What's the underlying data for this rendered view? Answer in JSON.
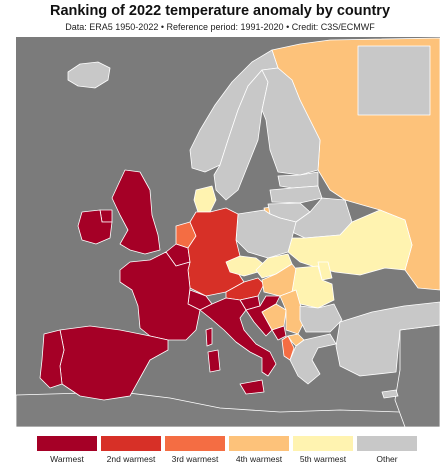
{
  "title": "Ranking of 2022 temperature anomaly by country",
  "subtitle": "Data: ERA5 1950-2022 • Reference period: 1991-2020 • Credit: C3S/ECMWF",
  "colors": {
    "sea": "#7b7b7b",
    "non_european_land": "#7e7e7e",
    "border": "#ffffff",
    "warmest": "#a50026",
    "second_warmest": "#d73027",
    "third_warmest": "#f46d43",
    "fourth_warmest": "#fdc27a",
    "fifth_warmest": "#fff3b0",
    "other": "#c8c8c8"
  },
  "legend": [
    {
      "label": "Warmest",
      "color": "#a50026"
    },
    {
      "label": "2nd warmest",
      "color": "#d73027"
    },
    {
      "label": "3rd warmest",
      "color": "#f46d43"
    },
    {
      "label": "4th warmest",
      "color": "#fdc27a"
    },
    {
      "label": "5th warmest",
      "color": "#fff3b0"
    },
    {
      "label": "Other",
      "color": "#c8c8c8"
    }
  ],
  "regions": [
    {
      "name": "iceland",
      "rank": "other"
    },
    {
      "name": "norway",
      "rank": "other"
    },
    {
      "name": "sweden",
      "rank": "other"
    },
    {
      "name": "finland",
      "rank": "other"
    },
    {
      "name": "russia",
      "rank": "fourth_warmest"
    },
    {
      "name": "svalbard",
      "rank": "other"
    },
    {
      "name": "estonia",
      "rank": "other"
    },
    {
      "name": "latvia",
      "rank": "other"
    },
    {
      "name": "lithuania",
      "rank": "other"
    },
    {
      "name": "belarus",
      "rank": "other"
    },
    {
      "name": "ukraine",
      "rank": "fifth_warmest"
    },
    {
      "name": "poland",
      "rank": "other"
    },
    {
      "name": "denmark",
      "rank": "fifth_warmest"
    },
    {
      "name": "united-kingdom",
      "rank": "warmest"
    },
    {
      "name": "ireland",
      "rank": "warmest"
    },
    {
      "name": "netherlands",
      "rank": "third_warmest"
    },
    {
      "name": "belgium",
      "rank": "warmest"
    },
    {
      "name": "germany",
      "rank": "second_warmest"
    },
    {
      "name": "france",
      "rank": "warmest"
    },
    {
      "name": "switzerland",
      "rank": "warmest"
    },
    {
      "name": "austria",
      "rank": "second_warmest"
    },
    {
      "name": "czechia",
      "rank": "fifth_warmest"
    },
    {
      "name": "slovakia",
      "rank": "fifth_warmest"
    },
    {
      "name": "hungary",
      "rank": "fourth_warmest"
    },
    {
      "name": "slovenia",
      "rank": "warmest"
    },
    {
      "name": "croatia",
      "rank": "warmest"
    },
    {
      "name": "bosnia",
      "rank": "fourth_warmest"
    },
    {
      "name": "serbia",
      "rank": "fourth_warmest"
    },
    {
      "name": "montenegro",
      "rank": "warmest"
    },
    {
      "name": "albania",
      "rank": "third_warmest"
    },
    {
      "name": "north-macedonia",
      "rank": "fourth_warmest"
    },
    {
      "name": "romania",
      "rank": "fifth_warmest"
    },
    {
      "name": "moldova",
      "rank": "fifth_warmest"
    },
    {
      "name": "bulgaria",
      "rank": "other"
    },
    {
      "name": "greece",
      "rank": "other"
    },
    {
      "name": "turkey",
      "rank": "other"
    },
    {
      "name": "italy",
      "rank": "warmest"
    },
    {
      "name": "sardinia",
      "rank": "warmest"
    },
    {
      "name": "sicily",
      "rank": "warmest"
    },
    {
      "name": "corsica",
      "rank": "warmest"
    },
    {
      "name": "spain",
      "rank": "warmest"
    },
    {
      "name": "portugal",
      "rank": "warmest"
    },
    {
      "name": "cyprus",
      "rank": "other"
    }
  ]
}
